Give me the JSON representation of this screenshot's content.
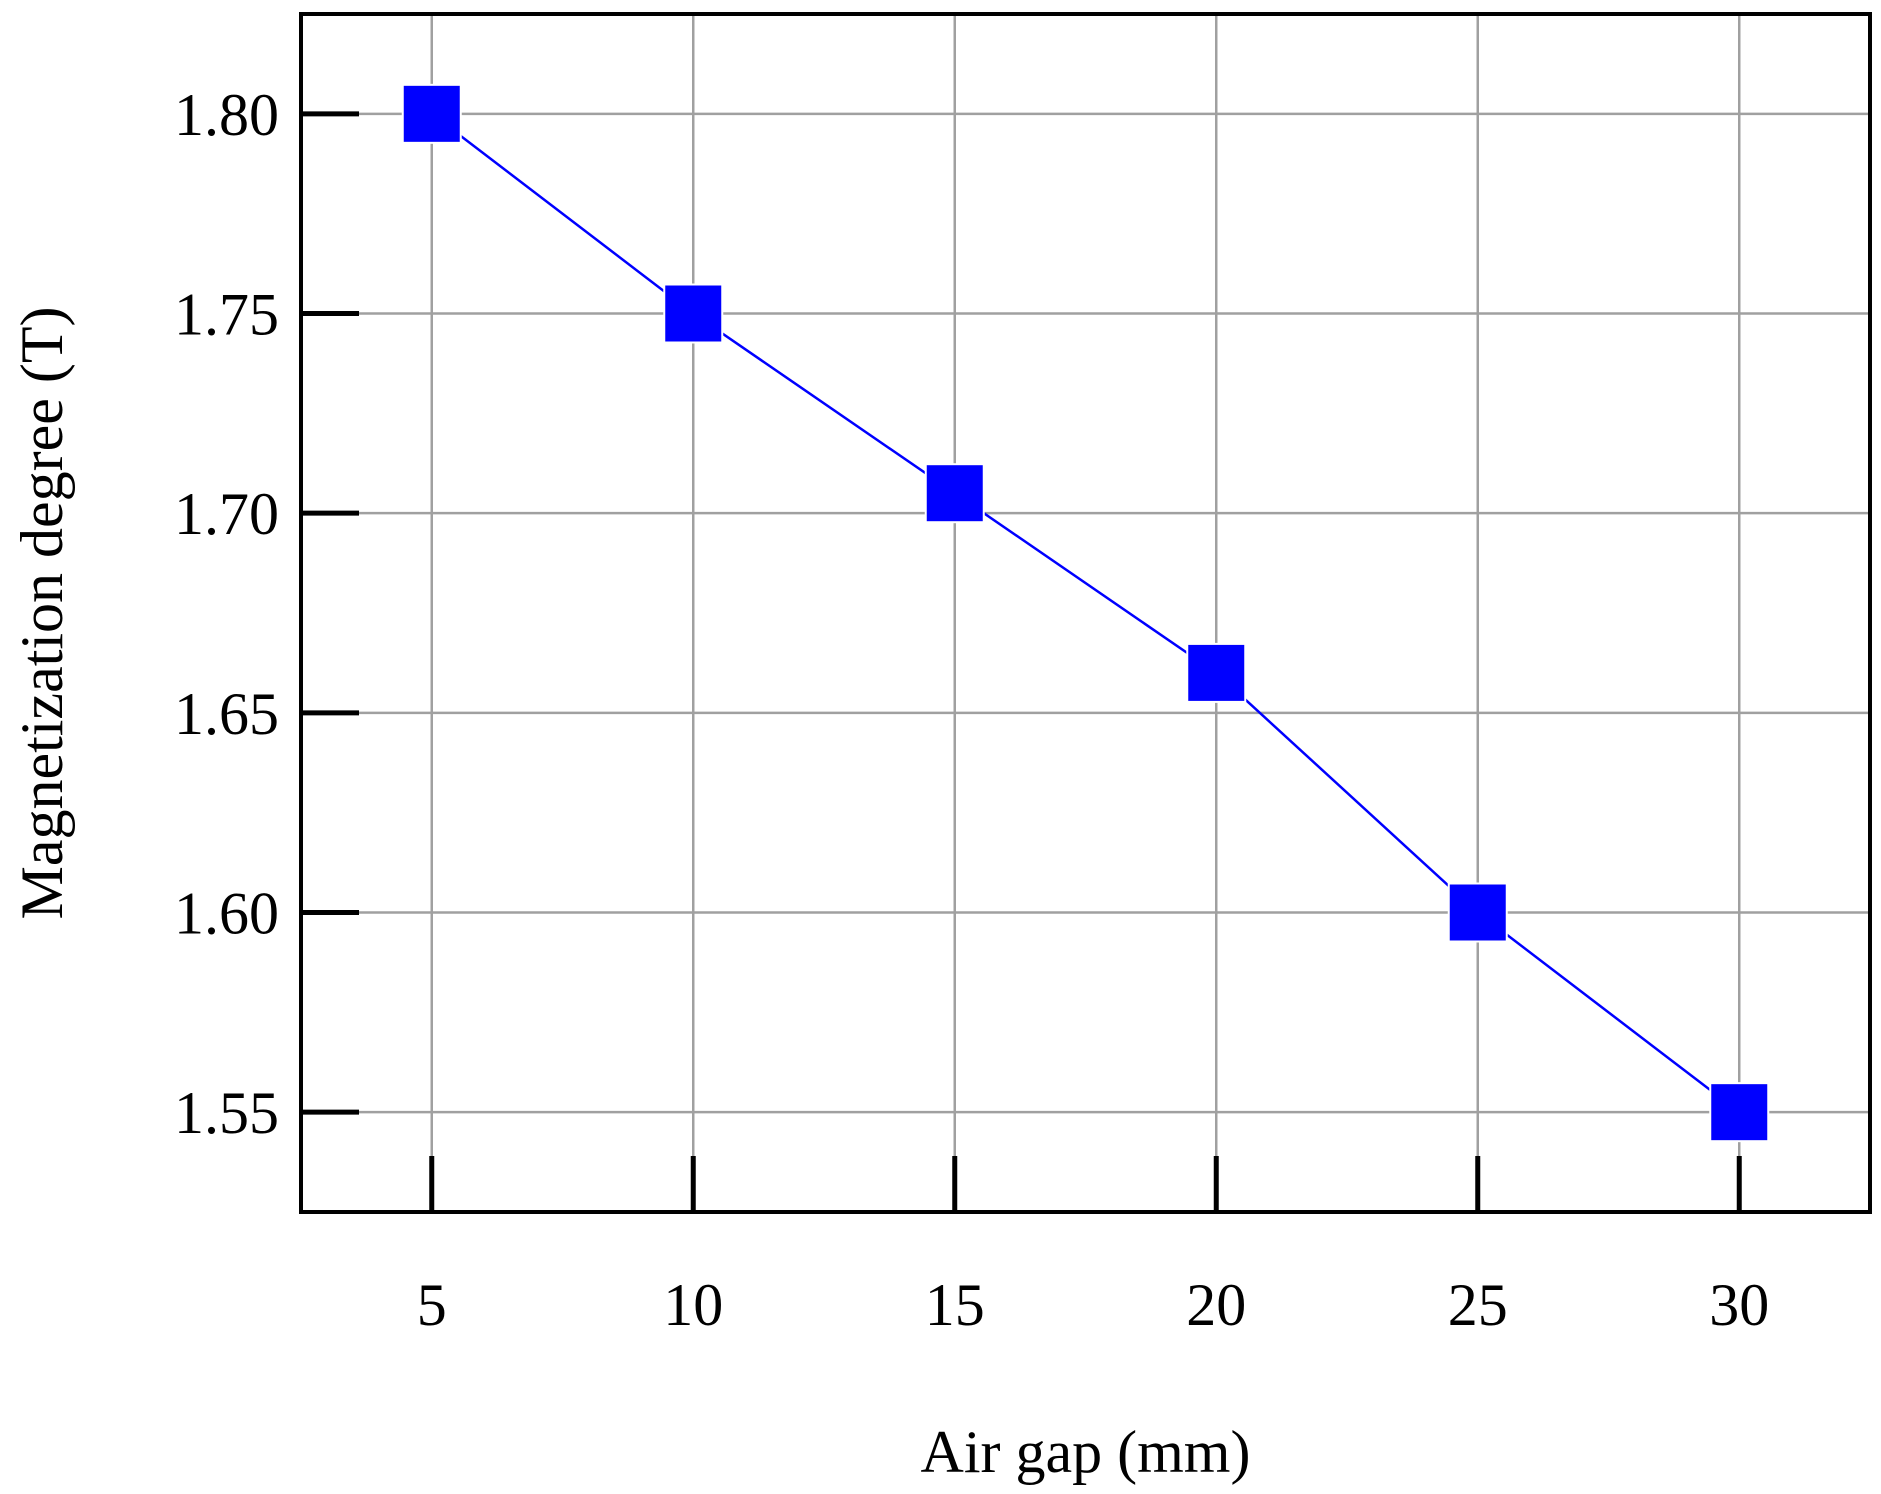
{
  "chart_data": {
    "type": "line",
    "title": "",
    "xlabel": "Air gap (mm)",
    "ylabel": "Magnetization degree (T)",
    "x": [
      5,
      10,
      15,
      20,
      25,
      30
    ],
    "x_tick_labels": [
      "5",
      "10",
      "15",
      "20",
      "25",
      "30"
    ],
    "y_ticks": [
      1.55,
      1.6,
      1.65,
      1.7,
      1.75,
      1.8
    ],
    "y_tick_labels": [
      "1.55",
      "1.60",
      "1.65",
      "1.70",
      "1.75",
      "1.80"
    ],
    "xlim": [
      2.5,
      32.5
    ],
    "ylim": [
      1.525,
      1.825
    ],
    "grid": true,
    "legend": "none",
    "series": [
      {
        "values": [
          1.8,
          1.75,
          1.705,
          1.66,
          1.6,
          1.55
        ],
        "color": "#0000ff",
        "marker": "square"
      }
    ]
  }
}
